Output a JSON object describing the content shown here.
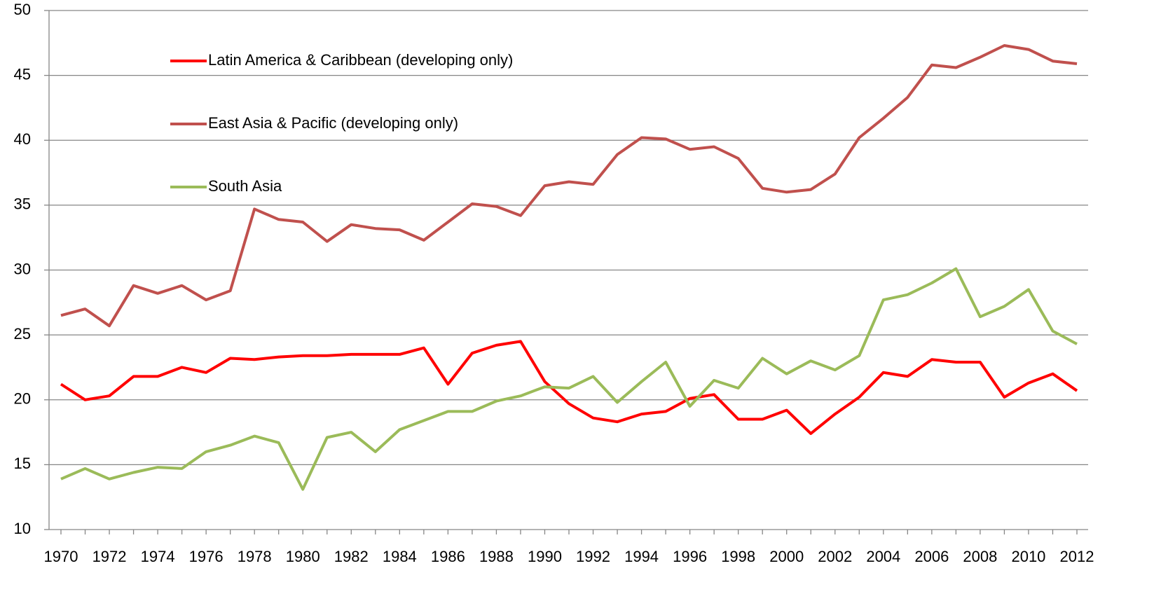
{
  "chart_data": {
    "type": "line",
    "categories": [
      "1970",
      null,
      "1972",
      null,
      "1974",
      null,
      "1976",
      null,
      "1978",
      null,
      "1980",
      null,
      "1982",
      null,
      "1984",
      null,
      "1986",
      null,
      "1988",
      null,
      "1990",
      null,
      "1992",
      null,
      "1994",
      null,
      "1996",
      null,
      "1998",
      null,
      "2000",
      null,
      "2002",
      null,
      "2004",
      null,
      "2006",
      null,
      "2008",
      null,
      "2010",
      null,
      "2012"
    ],
    "series": [
      {
        "name": "Latin America & Caribbean (developing only)",
        "color": "#ff0000",
        "values": [
          21.2,
          20.0,
          20.3,
          21.8,
          21.8,
          22.5,
          22.1,
          23.2,
          23.1,
          23.3,
          23.4,
          23.4,
          23.5,
          23.5,
          23.5,
          24.0,
          21.2,
          23.6,
          24.2,
          24.5,
          21.4,
          19.7,
          18.6,
          18.3,
          18.9,
          19.1,
          20.1,
          20.4,
          18.5,
          18.5,
          19.2,
          17.4,
          18.9,
          20.2,
          22.1,
          21.8,
          23.1,
          22.9,
          22.9,
          20.2,
          21.3,
          22.0,
          20.7
        ]
      },
      {
        "name": "East Asia & Pacific (developing only)",
        "color": "#c0504d",
        "values": [
          26.5,
          27.0,
          25.7,
          28.8,
          28.2,
          28.8,
          27.7,
          28.4,
          34.7,
          33.9,
          33.7,
          32.2,
          33.5,
          33.2,
          33.1,
          32.3,
          33.7,
          35.1,
          34.9,
          34.2,
          36.5,
          36.8,
          36.6,
          38.9,
          40.2,
          40.1,
          39.3,
          39.5,
          38.6,
          36.3,
          36.0,
          36.2,
          37.4,
          40.2,
          41.7,
          43.3,
          45.8,
          45.6,
          46.4,
          47.3,
          47.0,
          46.1,
          45.9
        ]
      },
      {
        "name": "South Asia",
        "color": "#9bbb59",
        "values": [
          13.9,
          14.7,
          13.9,
          14.4,
          14.8,
          14.7,
          16.0,
          16.5,
          17.2,
          16.7,
          13.1,
          17.1,
          17.5,
          16.0,
          17.7,
          18.4,
          19.1,
          19.1,
          19.9,
          20.3,
          21.0,
          20.9,
          21.8,
          19.8,
          21.4,
          22.9,
          19.5,
          21.5,
          20.9,
          23.2,
          22.0,
          23.0,
          22.3,
          23.4,
          27.7,
          28.1,
          29.0,
          30.1,
          26.4,
          27.2,
          28.5,
          25.3,
          24.3
        ]
      }
    ],
    "ylim": [
      10,
      50
    ],
    "yticks": [
      10,
      15,
      20,
      25,
      30,
      35,
      40,
      45,
      50
    ],
    "grid": true,
    "legend": "upper left"
  }
}
